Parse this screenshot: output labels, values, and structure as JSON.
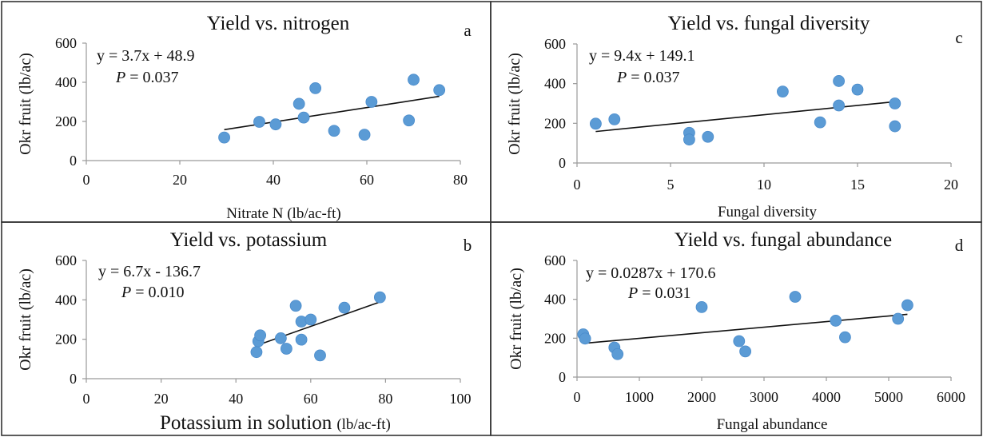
{
  "colors": {
    "point": "#5b9bd5",
    "trendline": "#111111"
  },
  "chart_data": [
    {
      "type": "scatter",
      "panel": "a",
      "title": "Yield vs. nitrogen",
      "xlabel": "Nitrate N (lb/ac-ft)",
      "ylabel": "Okr fruit (lb/ac)",
      "equation": "y = 3.7x + 48.9",
      "p_label": "P",
      "p_value": " = 0.037",
      "xlim": [
        0,
        80
      ],
      "ylim": [
        0,
        600
      ],
      "xticks": [
        0,
        20,
        40,
        60,
        80
      ],
      "yticks": [
        0,
        200,
        400,
        600
      ],
      "x": [
        29.5,
        37,
        40.5,
        45.5,
        46.5,
        49,
        53,
        59.5,
        61,
        69,
        70,
        75.5
      ],
      "y": [
        118,
        198,
        185,
        290,
        220,
        370,
        152,
        132,
        300,
        205,
        413,
        360
      ],
      "trendline": {
        "slope": 3.7,
        "intercept": 48.9,
        "x_range": [
          29.5,
          75.5
        ]
      }
    },
    {
      "type": "scatter",
      "panel": "b",
      "title": "Yield vs. potassium",
      "xlabel": "Potassium in solution",
      "xlabel_unit": "(lb/ac-ft)",
      "ylabel": "Okr fruit  (lb/ac)",
      "equation": "y = 6.7x - 136.7",
      "p_label": "P",
      "p_value": " = 0.010",
      "xlim": [
        0,
        100
      ],
      "ylim": [
        0,
        600
      ],
      "xticks": [
        0,
        20,
        40,
        60,
        80,
        100
      ],
      "yticks": [
        0,
        200,
        400,
        600
      ],
      "x": [
        45.5,
        46,
        46.5,
        52,
        53.5,
        56,
        57.5,
        57.5,
        60,
        62.5,
        69,
        78.5
      ],
      "y": [
        135,
        190,
        220,
        205,
        152,
        370,
        198,
        290,
        300,
        118,
        360,
        413
      ],
      "trendline": {
        "slope": 6.7,
        "intercept": -136.7,
        "x_range": [
          45.5,
          78.5
        ]
      }
    },
    {
      "type": "scatter",
      "panel": "c",
      "title": "Yield vs. fungal diversity",
      "xlabel": "Fungal diversity",
      "ylabel": "Okr fruit (lb/ac)",
      "equation": "y = 9.4x + 149.1",
      "p_label": "P",
      "p_value": " = 0.037",
      "xlim": [
        0,
        20
      ],
      "ylim": [
        0,
        600
      ],
      "xticks": [
        0,
        5,
        10,
        15,
        20
      ],
      "yticks": [
        0,
        200,
        400,
        600
      ],
      "x": [
        1,
        2,
        6,
        6,
        7,
        11,
        13,
        14,
        14,
        15,
        17,
        17
      ],
      "y": [
        198,
        220,
        152,
        118,
        132,
        360,
        205,
        413,
        290,
        370,
        300,
        185
      ],
      "trendline": {
        "slope": 9.4,
        "intercept": 149.1,
        "x_range": [
          1,
          17
        ]
      }
    },
    {
      "type": "scatter",
      "panel": "d",
      "title": "Yield vs. fungal abundance",
      "xlabel": "Fungal abundance",
      "ylabel": "Okr fruit (lb/ac)",
      "equation": "y = 0.0287x + 170.6",
      "p_label": "P",
      "p_value": " = 0.031",
      "xlim": [
        0,
        6000
      ],
      "ylim": [
        0,
        600
      ],
      "xticks": [
        0,
        1000,
        2000,
        3000,
        4000,
        5000,
        6000
      ],
      "yticks": [
        0,
        200,
        400,
        600
      ],
      "x": [
        100,
        130,
        600,
        650,
        2000,
        2600,
        2700,
        3500,
        4150,
        4300,
        5150,
        5300
      ],
      "y": [
        220,
        198,
        152,
        118,
        360,
        185,
        132,
        413,
        290,
        205,
        300,
        370
      ],
      "trendline": {
        "slope": 0.0287,
        "intercept": 170.6,
        "x_range": [
          100,
          5300
        ]
      }
    }
  ]
}
